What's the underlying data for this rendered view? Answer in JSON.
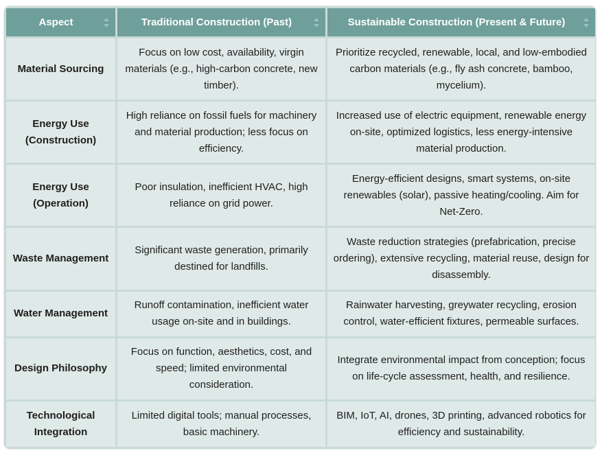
{
  "table": {
    "headers": [
      "Aspect",
      "Traditional Construction (Past)",
      "Sustainable Construction (Present & Future)"
    ],
    "rows": [
      {
        "aspect": "Material Sourcing",
        "traditional": "Focus on low cost, availability, virgin materials (e.g., high-carbon concrete, new timber).",
        "sustainable": "Prioritize recycled, renewable, local, and low-embodied carbon materials (e.g., fly ash concrete, bamboo, mycelium)."
      },
      {
        "aspect": "Energy Use (Construction)",
        "traditional": "High reliance on fossil fuels for machinery and material production; less focus on efficiency.",
        "sustainable": "Increased use of electric equipment, renewable energy on-site, optimized logistics, less energy-intensive material production."
      },
      {
        "aspect": "Energy Use (Operation)",
        "traditional": "Poor insulation, inefficient HVAC, high reliance on grid power.",
        "sustainable": "Energy-efficient designs, smart systems, on-site renewables (solar), passive heating/cooling. Aim for Net-Zero."
      },
      {
        "aspect": "Waste Management",
        "traditional": "Significant waste generation, primarily destined for landfills.",
        "sustainable": "Waste reduction strategies (prefabrication, precise ordering), extensive recycling, material reuse, design for disassembly."
      },
      {
        "aspect": "Water Management",
        "traditional": "Runoff contamination, inefficient water usage on-site and in buildings.",
        "sustainable": "Rainwater harvesting, greywater recycling, erosion control, water-efficient fixtures, permeable surfaces."
      },
      {
        "aspect": "Design Philosophy",
        "traditional": "Focus on function, aesthetics, cost, and speed; limited environmental consideration.",
        "sustainable": "Integrate environmental impact from conception; focus on life-cycle assessment, health, and resilience."
      },
      {
        "aspect": "Technological Integration",
        "traditional": "Limited digital tools; manual processes, basic machinery.",
        "sustainable": "BIM, IoT, AI, drones, 3D printing, advanced robotics for efficiency and sustainability."
      }
    ]
  },
  "colors": {
    "header_bg": "#6f9f9a",
    "cell_bg": "#dfe9e7",
    "border": "#c9dad8"
  },
  "icons": {
    "sort": "sort-arrows-icon"
  }
}
